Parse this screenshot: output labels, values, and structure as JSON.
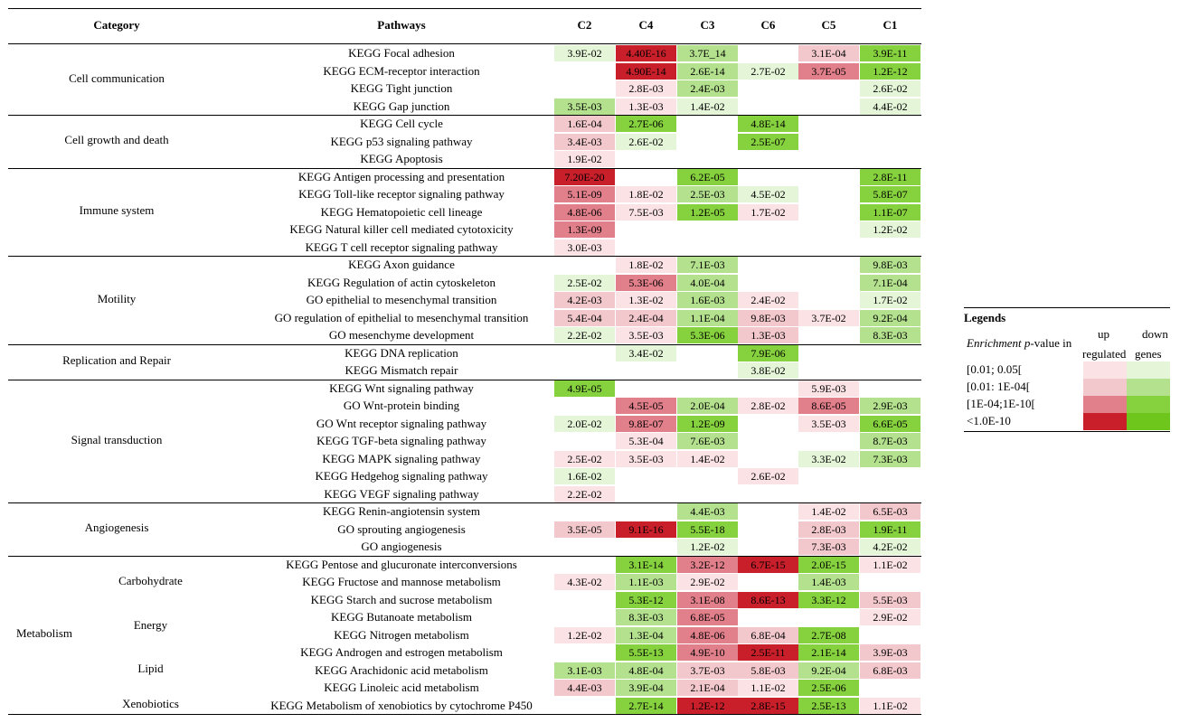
{
  "colors": {
    "up": [
      "#fbe2e5",
      "#f2c8cc",
      "#e17f8a",
      "#c81f2a"
    ],
    "down": [
      "#e4f5d8",
      "#b4e18e",
      "#86d13e",
      "#6ec51c"
    ]
  },
  "header": {
    "category": "Category",
    "pathways": "Pathways",
    "columns": [
      "C2",
      "C4",
      "C3",
      "C6",
      "C5",
      "C1"
    ]
  },
  "categories": [
    {
      "label": "Cell communication",
      "rows": [
        0,
        3
      ]
    },
    {
      "label": "Cell growth and death",
      "rows": [
        4,
        6
      ]
    },
    {
      "label": "Immune system",
      "rows": [
        7,
        11
      ]
    },
    {
      "label": "Motility",
      "rows": [
        12,
        16
      ]
    },
    {
      "label": "Replication and Repair",
      "rows": [
        17,
        18
      ]
    },
    {
      "label": "Signal transduction",
      "rows": [
        19,
        25
      ]
    },
    {
      "label": "Angiogenesis",
      "rows": [
        26,
        28
      ]
    },
    {
      "label": "Metabolism",
      "rows": [
        29,
        37
      ]
    }
  ],
  "subcategories": [
    {
      "label": "Carbohydrate",
      "rows": [
        29,
        31
      ]
    },
    {
      "label": "Energy",
      "rows": [
        32,
        33
      ]
    },
    {
      "label": "Lipid",
      "rows": [
        34,
        36
      ]
    },
    {
      "label": "Xenobiotics",
      "rows": [
        37,
        37
      ]
    }
  ],
  "rows": [
    {
      "pathway": "KEGG Focal adhesion",
      "cells": [
        [
          "3.9E-02",
          "d1"
        ],
        [
          "4.40E-16",
          "u4"
        ],
        [
          "3.7E_14",
          "d2"
        ],
        null,
        [
          "3.1E-04",
          "u2"
        ],
        [
          "3.9E-11",
          "d3"
        ]
      ]
    },
    {
      "pathway": "KEGG ECM-receptor interaction",
      "cells": [
        null,
        [
          "4.90E-14",
          "u4"
        ],
        [
          "2.6E-14",
          "d2"
        ],
        [
          "2.7E-02",
          "d1"
        ],
        [
          "3.7E-05",
          "u3"
        ],
        [
          "1.2E-12",
          "d3"
        ]
      ]
    },
    {
      "pathway": "KEGG Tight junction",
      "cells": [
        null,
        [
          "2.8E-03",
          "u1"
        ],
        [
          "2.4E-03",
          "d2"
        ],
        null,
        null,
        [
          "2.6E-02",
          "d1"
        ]
      ]
    },
    {
      "pathway": "KEGG Gap junction",
      "cells": [
        [
          "3.5E-03",
          "d2"
        ],
        [
          "1.3E-03",
          "u1"
        ],
        [
          "1.4E-02",
          "d1"
        ],
        null,
        null,
        [
          "4.4E-02",
          "d1"
        ]
      ]
    },
    {
      "pathway": "KEGG Cell cycle",
      "cells": [
        [
          "1.6E-04",
          "u2"
        ],
        [
          "2.7E-06",
          "d3"
        ],
        null,
        [
          "4.8E-14",
          "d3"
        ],
        null,
        null
      ]
    },
    {
      "pathway": "KEGG  p53 signaling pathway",
      "cells": [
        [
          "3.4E-03",
          "u2"
        ],
        [
          "2.6E-02",
          "d1"
        ],
        null,
        [
          "2.5E-07",
          "d3"
        ],
        null,
        null
      ]
    },
    {
      "pathway": "KEGG Apoptosis",
      "cells": [
        [
          "1.9E-02",
          "u1"
        ],
        null,
        null,
        null,
        null,
        null
      ]
    },
    {
      "pathway": "KEGG Antigen processing and presentation",
      "cells": [
        [
          "7.20E-20",
          "u4"
        ],
        null,
        [
          "6.2E-05",
          "d3"
        ],
        null,
        null,
        [
          "2.8E-11",
          "d3"
        ]
      ]
    },
    {
      "pathway": "KEGG  Toll-like receptor signaling pathway",
      "cells": [
        [
          "5.1E-09",
          "u3"
        ],
        [
          "1.8E-02",
          "u1"
        ],
        [
          "2.5E-03",
          "d2"
        ],
        [
          "4.5E-02",
          "d1"
        ],
        null,
        [
          "5.8E-07",
          "d3"
        ]
      ]
    },
    {
      "pathway": "KEGG Hematopoietic cell lineage",
      "cells": [
        [
          "4.8E-06",
          "u3"
        ],
        [
          "7.5E-03",
          "u1"
        ],
        [
          "1.2E-05",
          "d3"
        ],
        [
          "1.7E-02",
          "u1"
        ],
        null,
        [
          "1.1E-07",
          "d3"
        ]
      ]
    },
    {
      "pathway": "KEGG Natural killer cell mediated cytotoxicity",
      "cells": [
        [
          "1.3E-09",
          "u3"
        ],
        null,
        null,
        null,
        null,
        [
          "1.2E-02",
          "d1"
        ]
      ]
    },
    {
      "pathway": "KEGG T cell receptor signaling pathway",
      "cells": [
        [
          "3.0E-03",
          "u1"
        ],
        null,
        null,
        null,
        null,
        null
      ]
    },
    {
      "pathway": "KEGG Axon guidance",
      "cells": [
        null,
        [
          "1.8E-02",
          "u1"
        ],
        [
          "7.1E-03",
          "d2"
        ],
        null,
        null,
        [
          "9.8E-03",
          "d2"
        ]
      ]
    },
    {
      "pathway": "KEGG Regulation of actin cytoskeleton",
      "cells": [
        [
          "2.5E-02",
          "d1"
        ],
        [
          "5.3E-06",
          "u3"
        ],
        [
          "4.0E-04",
          "d2"
        ],
        null,
        null,
        [
          "7.1E-04",
          "d2"
        ]
      ]
    },
    {
      "pathway": "GO epithelial to mesenchymal transition",
      "cells": [
        [
          "4.2E-03",
          "u2"
        ],
        [
          "1.3E-02",
          "u1"
        ],
        [
          "1.6E-03",
          "d2"
        ],
        [
          "2.4E-02",
          "u1"
        ],
        null,
        [
          "1.7E-02",
          "d1"
        ]
      ]
    },
    {
      "pathway": "GO regulation of epithelial to mesenchymal transition",
      "cells": [
        [
          "5.4E-04",
          "u2"
        ],
        [
          "2.4E-04",
          "u2"
        ],
        [
          "1.1E-04",
          "d2"
        ],
        [
          "9.8E-03",
          "u2"
        ],
        [
          "3.7E-02",
          "u1"
        ],
        [
          "9.2E-04",
          "d2"
        ]
      ]
    },
    {
      "pathway": "GO mesenchyme development",
      "cells": [
        [
          "2.2E-02",
          "d1"
        ],
        [
          "3.5E-03",
          "u1"
        ],
        [
          "5.3E-06",
          "d3"
        ],
        [
          "1.3E-03",
          "u2"
        ],
        null,
        [
          "8.3E-03",
          "d2"
        ]
      ]
    },
    {
      "pathway": "KEGG DNA replication",
      "cells": [
        null,
        [
          "3.4E-02",
          "d1"
        ],
        null,
        [
          "7.9E-06",
          "d3"
        ],
        null,
        null
      ]
    },
    {
      "pathway": "KEGG Mismatch repair",
      "cells": [
        null,
        null,
        null,
        [
          "3.8E-02",
          "d1"
        ],
        null,
        null
      ]
    },
    {
      "pathway": "KEGG  Wnt signaling pathway",
      "cells": [
        [
          "4.9E-05",
          "d3"
        ],
        null,
        null,
        null,
        [
          "5.9E-03",
          "u1"
        ],
        null
      ]
    },
    {
      "pathway": "GO  Wnt-protein binding",
      "cells": [
        null,
        [
          "4.5E-05",
          "u3"
        ],
        [
          "2.0E-04",
          "d2"
        ],
        [
          "2.8E-02",
          "u1"
        ],
        [
          "8.6E-05",
          "u3"
        ],
        [
          "2.9E-03",
          "d2"
        ]
      ]
    },
    {
      "pathway": "GO Wnt receptor signaling pathway",
      "cells": [
        [
          "2.0E-02",
          "d1"
        ],
        [
          "9.8E-07",
          "u3"
        ],
        [
          "1.2E-09",
          "d3"
        ],
        null,
        [
          "3.5E-03",
          "u1"
        ],
        [
          "6.6E-05",
          "d3"
        ]
      ]
    },
    {
      "pathway": "KEGG TGF-beta signaling pathway",
      "cells": [
        null,
        [
          "5.3E-04",
          "u1"
        ],
        [
          "7.6E-03",
          "d2"
        ],
        null,
        null,
        [
          "8.7E-03",
          "d2"
        ]
      ]
    },
    {
      "pathway": "KEGG MAPK signaling pathway",
      "cells": [
        [
          "2.5E-02",
          "u1"
        ],
        [
          "3.5E-03",
          "u1"
        ],
        [
          "1.4E-02",
          "u1"
        ],
        null,
        [
          "3.3E-02",
          "d1"
        ],
        [
          "7.3E-03",
          "d2"
        ]
      ]
    },
    {
      "pathway": "KEGG Hedgehog signaling pathway",
      "cells": [
        [
          "1.6E-02",
          "d1"
        ],
        null,
        null,
        [
          "2.6E-02",
          "u1"
        ],
        null,
        null
      ]
    },
    {
      "pathway": "KEGG VEGF signaling pathway",
      "cells": [
        [
          "2.2E-02",
          "u1"
        ],
        null,
        null,
        null,
        null,
        null
      ]
    },
    {
      "pathway": "KEGG Renin-angiotensin system",
      "cells": [
        null,
        null,
        [
          "4.4E-03",
          "d2"
        ],
        null,
        [
          "1.4E-02",
          "u1"
        ],
        [
          "6.5E-03",
          "u2"
        ]
      ]
    },
    {
      "pathway": "GO sprouting angiogenesis",
      "cells": [
        [
          "3.5E-05",
          "u2"
        ],
        [
          "9.1E-16",
          "u4"
        ],
        [
          "5.5E-18",
          "d3"
        ],
        null,
        [
          "2.8E-03",
          "u2"
        ],
        [
          "1.9E-11",
          "d3"
        ]
      ]
    },
    {
      "pathway": "GO angiogenesis",
      "cells": [
        null,
        null,
        [
          "1.2E-02",
          "d1"
        ],
        null,
        [
          "7.3E-03",
          "u2"
        ],
        [
          "4.2E-02",
          "d1"
        ]
      ]
    },
    {
      "pathway": "KEGG Pentose and glucuronate interconversions",
      "cells": [
        null,
        [
          "3.1E-14",
          "d3"
        ],
        [
          "3.2E-12",
          "u3"
        ],
        [
          "6.7E-15",
          "u4"
        ],
        [
          "2.0E-15",
          "d3"
        ],
        [
          "1.1E-02",
          "u1"
        ]
      ]
    },
    {
      "pathway": "KEGG Fructose and mannose metabolism",
      "cells": [
        [
          "4.3E-02",
          "u1"
        ],
        [
          "1.1E-03",
          "d2"
        ],
        [
          "2.9E-02",
          "u1"
        ],
        null,
        [
          "1.4E-03",
          "d2"
        ],
        null
      ]
    },
    {
      "pathway": "KEGG Starch and sucrose metabolism",
      "cells": [
        null,
        [
          "5.3E-12",
          "d3"
        ],
        [
          "3.1E-08",
          "u3"
        ],
        [
          "8.6E-13",
          "u4"
        ],
        [
          "3.3E-12",
          "d3"
        ],
        [
          "5.5E-03",
          "u2"
        ]
      ]
    },
    {
      "pathway": "KEGG Butanoate metabolism",
      "cells": [
        null,
        [
          "8.3E-03",
          "d2"
        ],
        [
          "6.8E-05",
          "u3"
        ],
        null,
        null,
        [
          "2.9E-02",
          "u1"
        ]
      ]
    },
    {
      "pathway": "KEGG Nitrogen metabolism",
      "cells": [
        [
          "1.2E-02",
          "u1"
        ],
        [
          "1.3E-04",
          "d2"
        ],
        [
          "4.8E-06",
          "u3"
        ],
        [
          "6.8E-04",
          "u2"
        ],
        [
          "2.7E-08",
          "d3"
        ],
        null
      ]
    },
    {
      "pathway": "KEGG Androgen and estrogen metabolism",
      "cells": [
        null,
        [
          "5.5E-13",
          "d3"
        ],
        [
          "4.9E-10",
          "u3"
        ],
        [
          "2.5E-11",
          "u4"
        ],
        [
          "2.1E-14",
          "d3"
        ],
        [
          "3.9E-03",
          "u2"
        ]
      ]
    },
    {
      "pathway": "KEGG Arachidonic acid metabolism",
      "cells": [
        [
          "3.1E-03",
          "d2"
        ],
        [
          "4.8E-04",
          "d2"
        ],
        [
          "3.7E-03",
          "u2"
        ],
        [
          "5.8E-03",
          "u2"
        ],
        [
          "9.2E-04",
          "d2"
        ],
        [
          "6.8E-03",
          "u2"
        ]
      ]
    },
    {
      "pathway": "KEGG Linoleic acid metabolism",
      "cells": [
        [
          "4.4E-03",
          "u2"
        ],
        [
          "3.9E-04",
          "d2"
        ],
        [
          "2.1E-04",
          "u2"
        ],
        [
          "1.1E-02",
          "u1"
        ],
        [
          "2.5E-06",
          "d3"
        ],
        null
      ]
    },
    {
      "pathway": "KEGG Metabolism of xenobiotics by cytochrome P450",
      "cells": [
        null,
        [
          "2.7E-14",
          "d3"
        ],
        [
          "1.2E-12",
          "u4"
        ],
        [
          "2.8E-15",
          "u4"
        ],
        [
          "2.5E-13",
          "d3"
        ],
        [
          "1.1E-02",
          "u1"
        ]
      ]
    }
  ],
  "legend": {
    "title": "Legends",
    "enrichment_label_italic": "Enrichment p",
    "enrichment_label_rest": "-value in",
    "up": "up",
    "down": "down",
    "regulated": "regulated",
    "genes": "genes",
    "ranges": [
      "[0.01; 0.05[",
      "[0.01: 1E-04[",
      "[1E-04;1E-10[",
      "<1.0E-10"
    ]
  }
}
